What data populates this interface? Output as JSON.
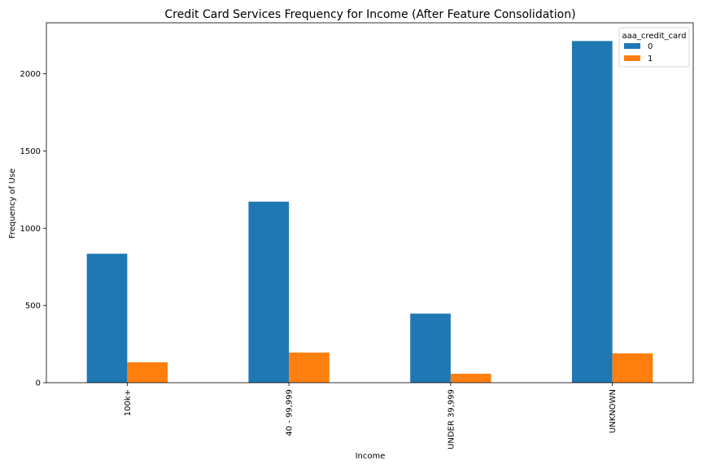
{
  "chart_data": {
    "type": "bar",
    "title": "Credit Card Services Frequency for Income (After Feature Consolidation)",
    "xlabel": "Income",
    "ylabel": "Frequency of Use",
    "categories": [
      "100k+",
      "40 - 99,999",
      "UNDER 39,999",
      "UNKNOWN"
    ],
    "series": [
      {
        "name": "0",
        "values": [
          835,
          1172,
          447,
          2212
        ],
        "color": "#1f77b4"
      },
      {
        "name": "1",
        "values": [
          132,
          195,
          58,
          190
        ],
        "color": "#ff7f0e"
      }
    ],
    "ylim": [
      0,
      2330
    ],
    "yticks": [
      0,
      500,
      1000,
      1500,
      2000
    ],
    "legend": {
      "title": "aaa_credit_card",
      "placement": "top-right"
    },
    "grid": false
  }
}
